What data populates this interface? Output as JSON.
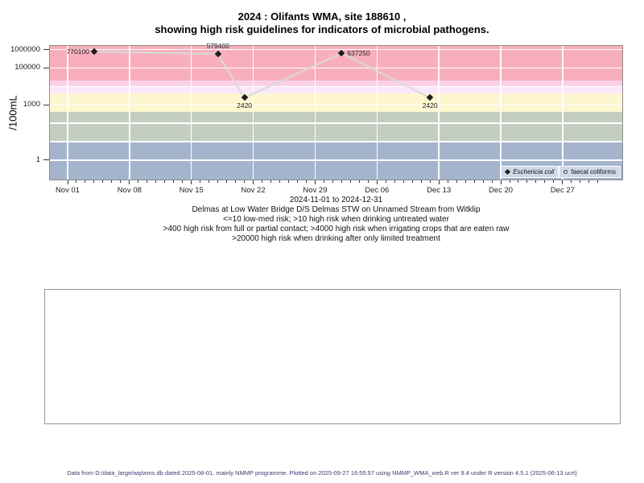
{
  "title": {
    "line1": "2024 : Olifants WMA, site 188610 ,",
    "line2": "showing high risk guidelines for indicators of microbial pathogens."
  },
  "subtitle": {
    "date_range": "2024-11-01 to 2024-12-31",
    "site_description": "Delmas at Low Water Bridge D/S Delmas STW on Unnamed Stream from Witklip",
    "guideline_line1": "<=10 low-med risk; >10 high risk when drinking untreated water",
    "guideline_line2": ">400 high risk from full or partial contact; >4000 high risk when irrigating crops that are eaten raw",
    "guideline_line3": ">20000 high risk when drinking after only limited treatment"
  },
  "legend": {
    "items": [
      {
        "icon": "filled-diamond-icon",
        "label": "Eschericia coli"
      },
      {
        "icon": "open-circle-icon",
        "label": "faecal coliforms"
      }
    ]
  },
  "footer": {
    "text": "Data from D:/data_large/wq/wms.db dated 2025-08-01, mainly NMMP programme. Plotted on 2025-09-27 16:55:57 using NMMP_WMA_web.R ver 9.4 under R version 4.5.1 (2025-06-13 ucrt)"
  },
  "chart_data": {
    "type": "line",
    "title": "2024 : Olifants WMA, site 188610 , showing high risk guidelines for indicators of microbial pathogens.",
    "xlabel": "",
    "ylabel": "/100mL",
    "yscale": "log",
    "ylim": [
      0.09,
      1600000
    ],
    "x_range": "2024-11-01 to 2024-12-31",
    "days_total": 60,
    "grid": true,
    "grid_color": "#ffffff",
    "grid_decades": [
      1,
      10,
      100,
      1000,
      10000,
      100000,
      1000000
    ],
    "yticks": [
      {
        "value": 1000000,
        "label": "1000000"
      },
      {
        "value": 100000,
        "label": "100000"
      },
      {
        "value": 1000,
        "label": "1000"
      },
      {
        "value": 1,
        "label": "1"
      }
    ],
    "xticks": [
      {
        "day": 0,
        "label": "Nov 01"
      },
      {
        "day": 7,
        "label": "Nov 08"
      },
      {
        "day": 14,
        "label": "Nov 15"
      },
      {
        "day": 21,
        "label": "Nov 22"
      },
      {
        "day": 28,
        "label": "Nov 29"
      },
      {
        "day": 35,
        "label": "Dec 06"
      },
      {
        "day": 42,
        "label": "Dec 13"
      },
      {
        "day": 49,
        "label": "Dec 20"
      },
      {
        "day": 56,
        "label": "Dec 27"
      }
    ],
    "series": [
      {
        "name": "Eschericia coli",
        "symbol": "filled-diamond",
        "points": [
          {
            "date": "2024-11-04",
            "day": 3,
            "value": 770100,
            "label": "770100",
            "label_pos": "left"
          },
          {
            "date": "2024-11-18",
            "day": 17,
            "value": 579400,
            "label": "579400",
            "label_pos": "above"
          },
          {
            "date": "2024-11-21",
            "day": 20,
            "value": 2420,
            "label": "2420",
            "label_pos": "below"
          },
          {
            "date": "2024-12-02",
            "day": 31,
            "value": 637250,
            "label": "637250",
            "label_pos": "right"
          },
          {
            "date": "2024-12-12",
            "day": 41,
            "value": 2420,
            "label": "2420",
            "label_pos": "below"
          }
        ]
      },
      {
        "name": "faecal coliforms",
        "symbol": "open-circle",
        "points": []
      }
    ],
    "bands": [
      {
        "min": 20000,
        "max": 1600000,
        "color": "#f9aebc"
      },
      {
        "min": 10000,
        "max": 20000,
        "color": "#fbd0e5"
      },
      {
        "min": 4000,
        "max": 10000,
        "color": "#fbe7fb"
      },
      {
        "min": 400,
        "max": 4000,
        "color": "#fdf6cf"
      },
      {
        "min": 10,
        "max": 400,
        "color": "#c4cec0"
      },
      {
        "min": 0.09,
        "max": 10,
        "color": "#a4b4cd"
      }
    ],
    "line_color": "#d9d9d9",
    "point_color": "#1c1c1c",
    "legend_bg": "#cdd9e9",
    "legend_position": "bottom-right-inside"
  }
}
